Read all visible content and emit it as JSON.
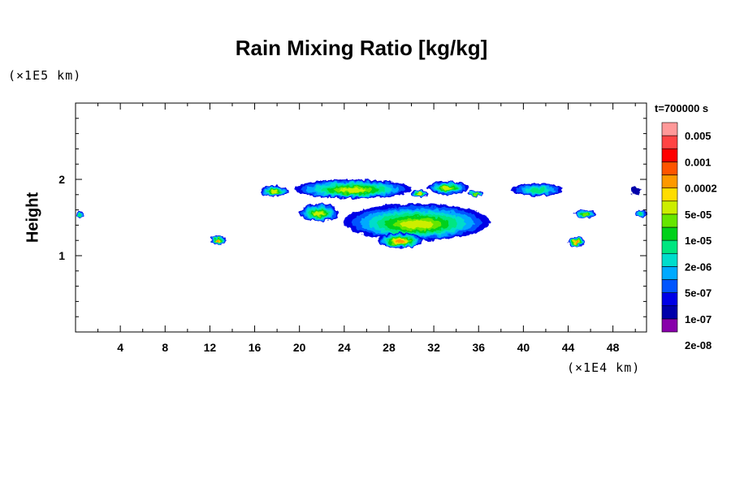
{
  "chart_data": {
    "type": "heatmap",
    "title": "Rain Mixing Ratio [kg/kg]",
    "xlabel": "",
    "ylabel": "Height",
    "x_unit_label": "(×1E4 km)",
    "y_unit_label": "(×1E5 km)",
    "time_label": "t=700000 s",
    "xlim": [
      0,
      51
    ],
    "ylim": [
      0,
      3
    ],
    "x_ticks": [
      4,
      8,
      12,
      16,
      20,
      24,
      28,
      32,
      36,
      40,
      44,
      48
    ],
    "y_ticks": [
      1,
      2
    ],
    "colorbar": {
      "labels": [
        "0.005",
        "0.001",
        "0.0002",
        "5e-05",
        "1e-05",
        "2e-06",
        "5e-07",
        "1e-07",
        "2e-08"
      ],
      "colors": [
        "#8800aa",
        "#0000aa",
        "#0000e6",
        "#0055ff",
        "#00aaff",
        "#00ddcc",
        "#00e680",
        "#00d11a",
        "#66e600",
        "#ccee00",
        "#ffdd00",
        "#ff9900",
        "#ff5500",
        "#ff0000",
        "#ff4444",
        "#ff9999"
      ]
    },
    "regions": [
      {
        "x": [
          0,
          0.8
        ],
        "y": [
          1.5,
          1.58
        ],
        "level": "2e-06"
      },
      {
        "x": [
          12,
          13.5
        ],
        "y": [
          1.15,
          1.25
        ],
        "level": "0.0002"
      },
      {
        "x": [
          16.5,
          19
        ],
        "y": [
          1.77,
          1.92
        ],
        "level": "5e-05"
      },
      {
        "x": [
          19.5,
          30
        ],
        "y": [
          1.75,
          2.0
        ],
        "level": "5e-05"
      },
      {
        "x": [
          30,
          31.5
        ],
        "y": [
          1.77,
          1.86
        ],
        "level": "5e-05"
      },
      {
        "x": [
          31.5,
          35
        ],
        "y": [
          1.8,
          1.98
        ],
        "level": "5e-05"
      },
      {
        "x": [
          35,
          36.5
        ],
        "y": [
          1.78,
          1.85
        ],
        "level": "1e-05"
      },
      {
        "x": [
          20,
          23.5
        ],
        "y": [
          1.45,
          1.68
        ],
        "level": "5e-05"
      },
      {
        "x": [
          24,
          37
        ],
        "y": [
          1.2,
          1.68
        ],
        "level": "5e-05"
      },
      {
        "x": [
          27,
          31
        ],
        "y": [
          1.1,
          1.3
        ],
        "level": "0.0002"
      },
      {
        "x": [
          39,
          43.5
        ],
        "y": [
          1.78,
          1.95
        ],
        "level": "2e-06"
      },
      {
        "x": [
          44.5,
          46.5
        ],
        "y": [
          1.5,
          1.6
        ],
        "level": "1e-05"
      },
      {
        "x": [
          44,
          45.5
        ],
        "y": [
          1.12,
          1.25
        ],
        "level": "0.0002"
      },
      {
        "x": [
          49.5,
          50.5
        ],
        "y": [
          1.8,
          1.9
        ],
        "level": "2e-08"
      },
      {
        "x": [
          50,
          51
        ],
        "y": [
          1.5,
          1.6
        ],
        "level": "2e-06"
      }
    ],
    "grid": false,
    "legend": "right"
  }
}
